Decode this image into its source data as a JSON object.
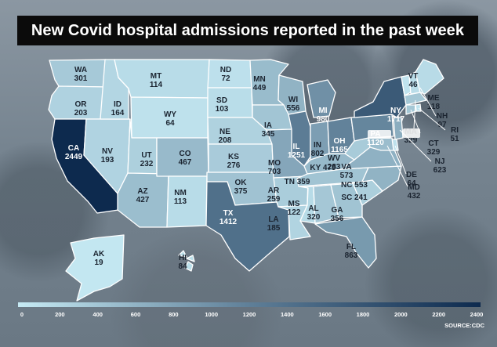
{
  "title": "New Covid hospital admissions reported in the past week",
  "source": "SOURCE:CDC",
  "color_scale": {
    "min": 0,
    "max": 2400,
    "low_color": "#c6eaf4",
    "high_color": "#0d2a4e",
    "ticks": [
      "0",
      "200",
      "400",
      "600",
      "800",
      "1000",
      "1200",
      "1400",
      "1600",
      "1800",
      "2000",
      "2200",
      "2400"
    ]
  },
  "chart_data": {
    "type": "choropleth",
    "title": "New Covid hospital admissions reported in the past week",
    "states": [
      {
        "code": "WA",
        "value": 301
      },
      {
        "code": "OR",
        "value": 203
      },
      {
        "code": "CA",
        "value": 2449
      },
      {
        "code": "NV",
        "value": 193
      },
      {
        "code": "ID",
        "value": 164
      },
      {
        "code": "MT",
        "value": 114
      },
      {
        "code": "WY",
        "value": 64
      },
      {
        "code": "UT",
        "value": 232
      },
      {
        "code": "AZ",
        "value": 427
      },
      {
        "code": "CO",
        "value": 467
      },
      {
        "code": "NM",
        "value": 113
      },
      {
        "code": "ND",
        "value": 72
      },
      {
        "code": "SD",
        "value": 103
      },
      {
        "code": "NE",
        "value": 208
      },
      {
        "code": "KS",
        "value": 276
      },
      {
        "code": "OK",
        "value": 375
      },
      {
        "code": "TX",
        "value": 1412
      },
      {
        "code": "MN",
        "value": 449
      },
      {
        "code": "IA",
        "value": 345
      },
      {
        "code": "MO",
        "value": 703
      },
      {
        "code": "AR",
        "value": 259
      },
      {
        "code": "LA",
        "value": 185
      },
      {
        "code": "WI",
        "value": 556
      },
      {
        "code": "IL",
        "value": 1251
      },
      {
        "code": "MI",
        "value": 980
      },
      {
        "code": "IN",
        "value": 802
      },
      {
        "code": "OH",
        "value": 1165
      },
      {
        "code": "KY",
        "value": 479
      },
      {
        "code": "TN",
        "value": 359
      },
      {
        "code": "MS",
        "value": 122
      },
      {
        "code": "AL",
        "value": 320
      },
      {
        "code": "GA",
        "value": 356
      },
      {
        "code": "FL",
        "value": 863
      },
      {
        "code": "SC",
        "value": 241
      },
      {
        "code": "NC",
        "value": 553
      },
      {
        "code": "VA",
        "value": 573
      },
      {
        "code": "WV",
        "value": 283
      },
      {
        "code": "PA",
        "value": 1120
      },
      {
        "code": "NY",
        "value": 1717
      },
      {
        "code": "VT",
        "value": 46
      },
      {
        "code": "NH",
        "value": 97
      },
      {
        "code": "ME",
        "value": 118
      },
      {
        "code": "MA",
        "value": 329
      },
      {
        "code": "RI",
        "value": 51
      },
      {
        "code": "CT",
        "value": 329
      },
      {
        "code": "NJ",
        "value": 623
      },
      {
        "code": "DE",
        "value": 64
      },
      {
        "code": "MD",
        "value": 432
      },
      {
        "code": "AK",
        "value": 19
      },
      {
        "code": "HI",
        "value": 84
      }
    ]
  }
}
